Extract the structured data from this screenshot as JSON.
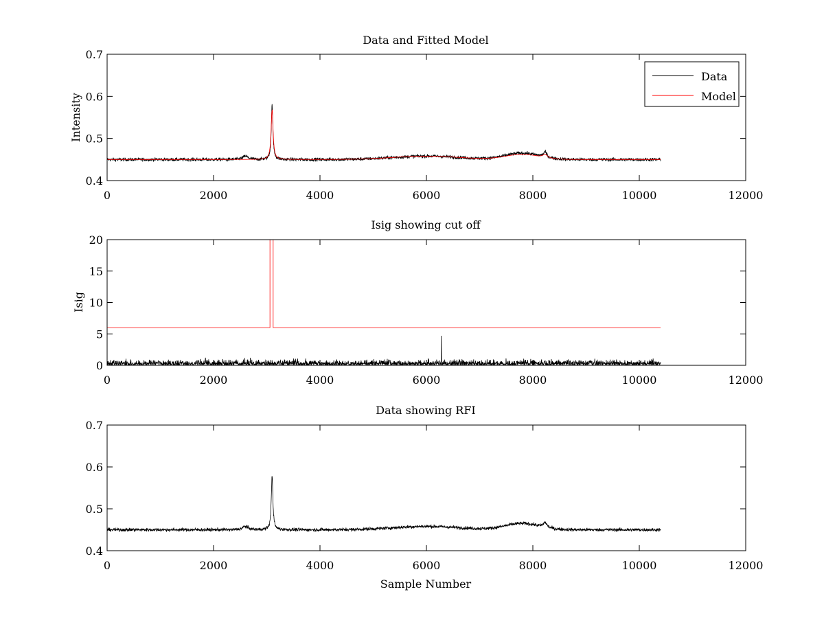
{
  "figure_title": "",
  "chart_data": [
    {
      "type": "line",
      "title": "Data and Fitted Model",
      "xlabel": "",
      "ylabel": "Intensity",
      "xlim": [
        0,
        12000
      ],
      "ylim": [
        0.4,
        0.7
      ],
      "xticks": [
        0,
        2000,
        4000,
        6000,
        8000,
        10000,
        12000
      ],
      "yticks": [
        0.4,
        0.5,
        0.6,
        0.7
      ],
      "grid": false,
      "legend_position": "top-right",
      "legend": [
        "Data",
        "Model"
      ],
      "series": [
        {
          "name": "Data",
          "color": "#000000",
          "x_range": [
            0,
            10400
          ],
          "baseline": 0.45,
          "noise": 0.004,
          "features": [
            {
              "x": 2600,
              "height": 0.008,
              "width": 60
            },
            {
              "x": 3100,
              "height": 0.13,
              "width": 18
            },
            {
              "x": 8230,
              "height": 0.012,
              "width": 40
            }
          ],
          "humps": [
            {
              "x": 6000,
              "height": 0.008,
              "width": 900
            },
            {
              "x": 7800,
              "height": 0.015,
              "width": 450
            }
          ]
        },
        {
          "name": "Model",
          "color": "#ff0000",
          "x_range": [
            0,
            10400
          ],
          "baseline": 0.45,
          "noise": 0,
          "features": [
            {
              "x": 3100,
              "height": 0.12,
              "width": 22
            },
            {
              "x": 8230,
              "height": 0.008,
              "width": 50
            }
          ],
          "humps": [
            {
              "x": 6000,
              "height": 0.008,
              "width": 900
            },
            {
              "x": 7800,
              "height": 0.012,
              "width": 450
            }
          ]
        }
      ]
    },
    {
      "type": "line",
      "title": "Isig showing cut off",
      "xlabel": "",
      "ylabel": "Isig",
      "xlim": [
        0,
        12000
      ],
      "ylim": [
        0,
        20
      ],
      "xticks": [
        0,
        2000,
        4000,
        6000,
        8000,
        10000,
        12000
      ],
      "yticks": [
        0,
        5,
        10,
        15,
        20
      ],
      "grid": false,
      "series": [
        {
          "name": "Isig",
          "color": "#000000",
          "x_range": [
            0,
            10400
          ],
          "kind": "abs-noise",
          "scale": 0.8,
          "spikes": [
            {
              "x": 6280,
              "value": 4.7
            }
          ]
        },
        {
          "name": "Cut off",
          "color": "#ff0000",
          "kind": "step",
          "points": [
            [
              0,
              6
            ],
            [
              3060,
              6
            ],
            [
              3060,
              20
            ],
            [
              3120,
              20
            ],
            [
              3120,
              6
            ],
            [
              10400,
              6
            ]
          ]
        }
      ]
    },
    {
      "type": "line",
      "title": "Data showing RFI",
      "xlabel": "Sample Number",
      "ylabel": "",
      "xlim": [
        0,
        12000
      ],
      "ylim": [
        0.4,
        0.7
      ],
      "xticks": [
        0,
        2000,
        4000,
        6000,
        8000,
        10000,
        12000
      ],
      "yticks": [
        0.4,
        0.5,
        0.6,
        0.7
      ],
      "grid": false,
      "series": [
        {
          "name": "Data",
          "color": "#000000",
          "x_range": [
            0,
            10400
          ],
          "baseline": 0.45,
          "noise": 0.004,
          "features": [
            {
              "x": 2600,
              "height": 0.008,
              "width": 60
            },
            {
              "x": 3100,
              "height": 0.13,
              "width": 18
            },
            {
              "x": 8230,
              "height": 0.012,
              "width": 40
            }
          ],
          "humps": [
            {
              "x": 6000,
              "height": 0.008,
              "width": 900
            },
            {
              "x": 7800,
              "height": 0.015,
              "width": 450
            }
          ]
        }
      ]
    }
  ]
}
